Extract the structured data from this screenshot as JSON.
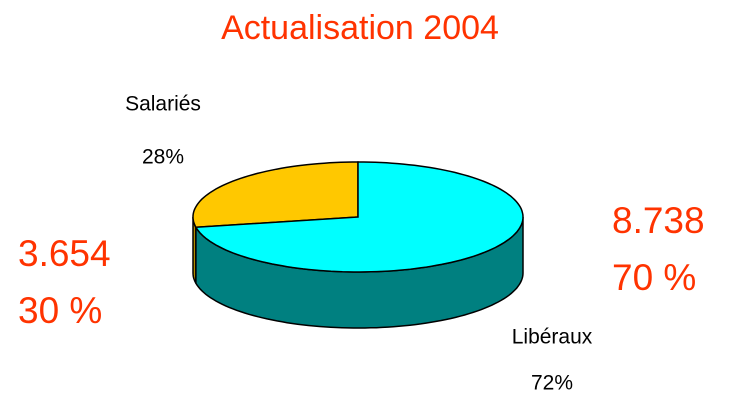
{
  "chart_data": {
    "type": "pie",
    "title": "Actualisation 2004",
    "categories": [
      "Salariés",
      "Libéraux"
    ],
    "values": [
      28,
      72
    ],
    "value_labels": [
      "28%",
      "72%"
    ],
    "colors": [
      "#ffc800",
      "#00ffff"
    ],
    "side_colors": [
      "#b08c00",
      "#008080"
    ],
    "annotations": [
      "3.654",
      "30 %",
      "8.738",
      "70 %"
    ]
  }
}
